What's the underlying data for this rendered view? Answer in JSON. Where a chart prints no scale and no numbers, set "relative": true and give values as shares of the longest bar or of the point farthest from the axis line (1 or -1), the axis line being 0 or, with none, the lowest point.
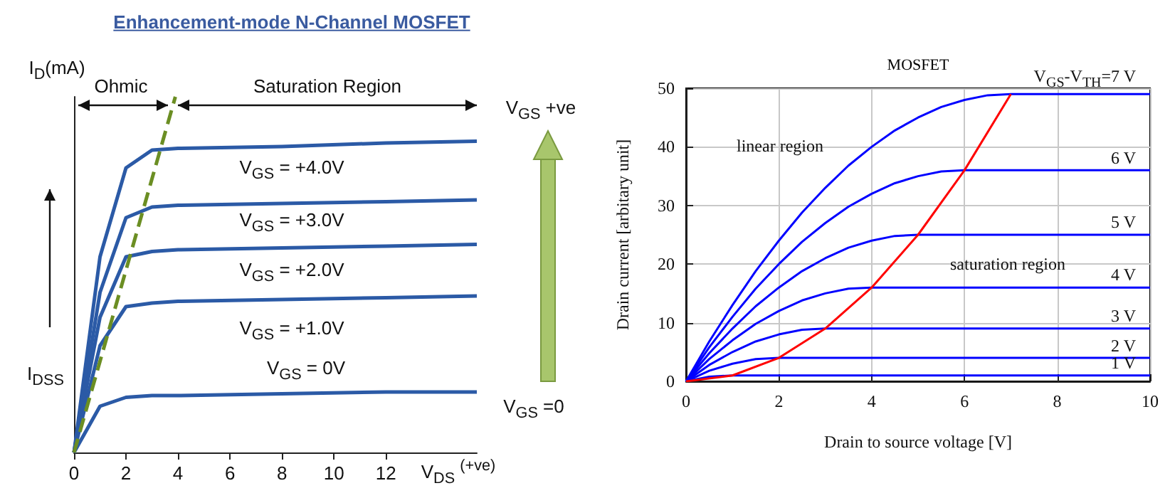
{
  "chart_data": [
    {
      "type": "line",
      "title": "Enhancement-mode N-Channel MOSFET",
      "xlabel": "V$_{DS}$ $^{(+ve)}$",
      "ylabel": "I$_{D}$(mA)",
      "relative": true,
      "xlim": [
        0,
        15.5
      ],
      "xticks": [
        0,
        2,
        4,
        6,
        8,
        10,
        12
      ],
      "tick_labels": "x",
      "grid": false,
      "marker": "none",
      "series": [
        {
          "color": "#2b5aa6",
          "x": [
            0,
            1,
            2,
            3,
            4,
            8,
            12,
            15.5
          ],
          "values": [
            0,
            0.55,
            0.8,
            0.85,
            0.855,
            0.86,
            0.87,
            0.875
          ]
        },
        {
          "color": "#2b5aa6",
          "x": [
            0,
            1,
            2,
            3,
            4,
            8,
            12,
            15.5
          ],
          "values": [
            0,
            0.45,
            0.66,
            0.69,
            0.695,
            0.7,
            0.705,
            0.71
          ]
        },
        {
          "color": "#2b5aa6",
          "x": [
            0,
            1,
            2,
            3,
            4,
            8,
            12,
            15.5
          ],
          "values": [
            0,
            0.38,
            0.55,
            0.565,
            0.57,
            0.575,
            0.58,
            0.585
          ]
        },
        {
          "color": "#2b5aa6",
          "x": [
            0,
            1,
            2,
            3,
            4,
            8,
            12,
            15.5
          ],
          "values": [
            0,
            0.3,
            0.41,
            0.42,
            0.425,
            0.43,
            0.435,
            0.44
          ]
        },
        {
          "color": "#2b5aa6",
          "x": [
            0,
            1,
            2,
            3,
            4,
            8,
            12,
            15.5
          ],
          "values": [
            0,
            0.13,
            0.155,
            0.16,
            0.16,
            0.165,
            0.17,
            0.17
          ]
        },
        {
          "color": "#6b8e23",
          "line_style": "dashed",
          "x": [
            0,
            3.9
          ],
          "values": [
            0,
            1
          ]
        }
      ],
      "annotations": [
        "Ohmic",
        "Saturation Region",
        "V$_{GS}$ = +4.0V",
        "V$_{GS}$ = +3.0V",
        "V$_{GS}$ = +2.0V",
        "V$_{GS}$ = +1.0V",
        "V$_{GS}$ = 0V",
        "V$_{GS}$ +ve",
        "V$_{GS}$ =0",
        "I$_{DSS}$"
      ]
    },
    {
      "type": "line",
      "title": "MOSFET",
      "xlabel": "Drain to source voltage [V]",
      "ylabel": "Drain current [arbitary unit]",
      "xlim": [
        0,
        10
      ],
      "xticks": [
        0,
        2,
        4,
        6,
        8,
        10
      ],
      "ylim": [
        0,
        50
      ],
      "yticks": [
        0,
        10,
        20,
        30,
        40,
        50
      ],
      "grid": true,
      "marker": "none",
      "series": [
        {
          "name": "1 V",
          "color": "#0000ff",
          "x": [
            0,
            0.5,
            1,
            10
          ],
          "values": [
            0,
            0.8,
            1,
            1
          ]
        },
        {
          "name": "2 V",
          "color": "#0000ff",
          "x": [
            0,
            0.5,
            1,
            1.5,
            2,
            10
          ],
          "values": [
            0,
            1.8,
            3,
            3.8,
            4,
            4
          ]
        },
        {
          "name": "3 V",
          "color": "#0000ff",
          "x": [
            0,
            0.5,
            1,
            1.5,
            2,
            2.5,
            3,
            10
          ],
          "values": [
            0,
            2.8,
            5,
            6.8,
            8,
            8.8,
            9,
            9
          ]
        },
        {
          "name": "4 V",
          "color": "#0000ff",
          "x": [
            0,
            0.5,
            1,
            1.5,
            2,
            2.5,
            3,
            3.5,
            4,
            10
          ],
          "values": [
            0,
            3.8,
            7,
            9.8,
            12,
            13.8,
            15,
            15.8,
            16,
            16
          ]
        },
        {
          "name": "5 V",
          "color": "#0000ff",
          "x": [
            0,
            0.5,
            1,
            1.5,
            2,
            2.5,
            3,
            3.5,
            4,
            4.5,
            5,
            10
          ],
          "values": [
            0,
            4.8,
            9,
            12.8,
            16,
            18.8,
            21,
            22.8,
            24,
            24.8,
            25,
            25
          ]
        },
        {
          "name": "6 V",
          "color": "#0000ff",
          "x": [
            0,
            0.5,
            1,
            1.5,
            2,
            2.5,
            3,
            3.5,
            4,
            4.5,
            5,
            5.5,
            6,
            10
          ],
          "values": [
            0,
            5.8,
            11,
            15.8,
            20,
            23.8,
            27,
            29.8,
            32,
            33.8,
            35,
            35.8,
            36,
            36
          ]
        },
        {
          "name": "V$_{GS}$-V$_{TH}$=7 V",
          "color": "#0000ff",
          "x": [
            0,
            0.5,
            1,
            1.5,
            2,
            2.5,
            3,
            3.5,
            4,
            4.5,
            5,
            5.5,
            6,
            6.5,
            7,
            10
          ],
          "values": [
            0,
            6.8,
            13,
            18.8,
            24,
            28.8,
            33,
            36.8,
            40,
            42.8,
            45,
            46.8,
            48,
            48.8,
            49,
            49
          ]
        },
        {
          "color": "#ff0000",
          "x": [
            0,
            1,
            2,
            3,
            4,
            5,
            6,
            7
          ],
          "values": [
            0,
            1,
            4,
            9,
            16,
            25,
            36,
            49
          ]
        }
      ],
      "annotations": [
        "linear region",
        "saturation region"
      ]
    }
  ]
}
